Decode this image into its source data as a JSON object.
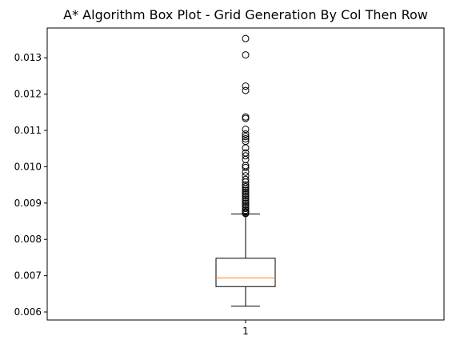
{
  "chart_data": {
    "type": "box",
    "title": "A* Algorithm Box Plot - Grid Generation By Col Then Row",
    "xlabel": "",
    "ylabel": "",
    "categories": [
      "1"
    ],
    "ylim": [
      0.00578,
      0.01382
    ],
    "yticks": [
      0.006,
      0.007,
      0.008,
      0.009,
      0.01,
      0.011,
      0.012,
      0.013
    ],
    "ytick_labels": [
      "0.006",
      "0.007",
      "0.008",
      "0.009",
      "0.010",
      "0.011",
      "0.012",
      "0.013"
    ],
    "grid": false,
    "legend": "none",
    "box": {
      "whisker_low": 0.00616,
      "q1": 0.0067,
      "median": 0.00694,
      "q3": 0.00748,
      "whisker_high": 0.0087
    },
    "outliers": [
      0.01353,
      0.01308,
      0.01222,
      0.0121,
      0.01137,
      0.01133,
      0.01103,
      0.0109,
      0.01083,
      0.01077,
      0.0107,
      0.01052,
      0.01038,
      0.0103,
      0.0102,
      0.01003,
      0.00998,
      0.00985,
      0.00975,
      0.00965,
      0.00958,
      0.0095,
      0.00945,
      0.0094,
      0.00935,
      0.0093,
      0.00925,
      0.0092,
      0.00915,
      0.0091,
      0.00905,
      0.009,
      0.00895,
      0.0089,
      0.00885,
      0.0088,
      0.00876,
      0.00873,
      0.00871
    ],
    "colors": {
      "box": "#000000",
      "median": "#ff7f0e",
      "whisker": "#000000",
      "outlier_edge": "#000000"
    }
  }
}
